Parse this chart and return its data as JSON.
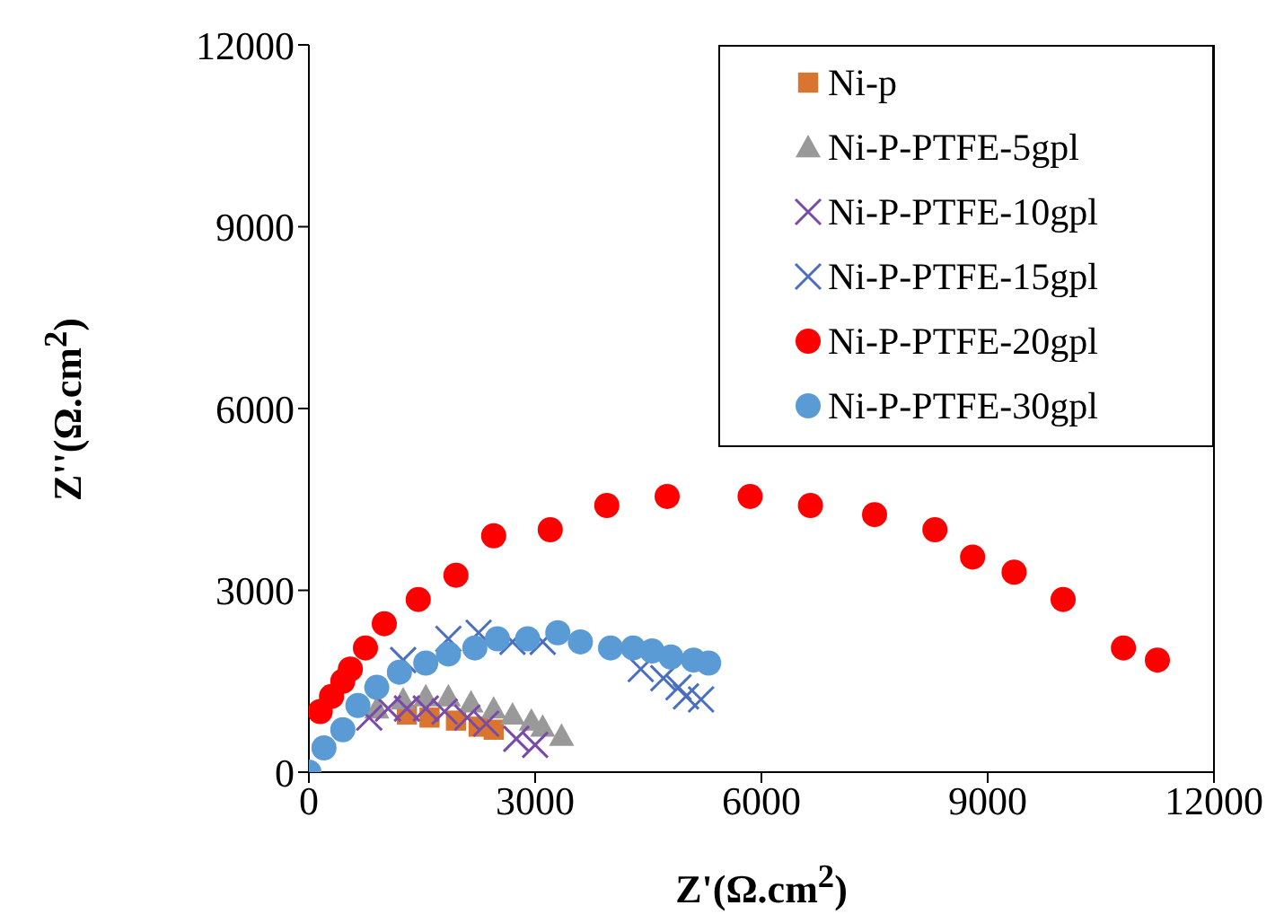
{
  "chart_data": {
    "type": "scatter",
    "xlabel": "Z'(Ω.cm$^{2}$)",
    "ylabel": "Z''(Ω.cm$^{2}$)",
    "xlim": [
      0,
      12000
    ],
    "xticks": [
      0,
      3000,
      6000,
      9000,
      12000
    ],
    "ylim": [
      0,
      12000
    ],
    "yticks": [
      0,
      3000,
      6000,
      9000,
      12000
    ],
    "grid": false,
    "legend": "top right",
    "series": [
      {
        "name": "Ni-p",
        "color": "#d97530",
        "marker": "square",
        "x": [
          1300,
          1600,
          1950,
          2250,
          2450
        ],
        "values": [
          950,
          900,
          850,
          750,
          700
        ]
      },
      {
        "name": "Ni-P-PTFE-5gpl",
        "color": "#999999",
        "marker": "triangle",
        "x": [
          900,
          1250,
          1550,
          1850,
          2150,
          2450,
          2700,
          2950,
          3100,
          3350
        ],
        "values": [
          1050,
          1200,
          1250,
          1250,
          1150,
          1050,
          950,
          850,
          750,
          600
        ]
      },
      {
        "name": "Ni-P-PTFE-10gpl",
        "color": "#7a4aa8",
        "marker": "cross",
        "x": [
          800,
          1050,
          1300,
          1550,
          1800,
          2100,
          2350,
          2750,
          3000
        ],
        "values": [
          900,
          1050,
          1050,
          1050,
          1000,
          900,
          800,
          550,
          450
        ]
      },
      {
        "name": "Ni-P-PTFE-15gpl",
        "color": "#4a6fbf",
        "marker": "cross",
        "x": [
          1250,
          1850,
          2250,
          2700,
          3100,
          4400,
          4700,
          4900,
          5000,
          5200
        ],
        "values": [
          1850,
          2200,
          2300,
          2150,
          2150,
          1700,
          1550,
          1400,
          1250,
          1200
        ]
      },
      {
        "name": "Ni-P-PTFE-20gpl",
        "color": "#ff0000",
        "marker": "circle",
        "x": [
          150,
          300,
          450,
          550,
          750,
          1000,
          1450,
          1950,
          2450,
          3200,
          3950,
          4750,
          5850,
          6650,
          7500,
          8300,
          8800,
          9350,
          10000,
          10800,
          11250
        ],
        "values": [
          1000,
          1250,
          1500,
          1700,
          2050,
          2450,
          2850,
          3250,
          3900,
          4000,
          4400,
          4550,
          4550,
          4400,
          4250,
          4000,
          3550,
          3300,
          2850,
          2050,
          1850
        ]
      },
      {
        "name": "Ni-P-PTFE-30gpl",
        "color": "#5b9bd5",
        "marker": "circle",
        "x": [
          0,
          200,
          450,
          650,
          900,
          1200,
          1550,
          1850,
          2200,
          2500,
          2900,
          3300,
          3600,
          4000,
          4300,
          4550,
          4800,
          5100,
          5300
        ],
        "values": [
          0,
          400,
          700,
          1100,
          1400,
          1650,
          1800,
          1950,
          2050,
          2200,
          2200,
          2300,
          2150,
          2050,
          2050,
          2000,
          1900,
          1850,
          1800
        ]
      }
    ]
  }
}
